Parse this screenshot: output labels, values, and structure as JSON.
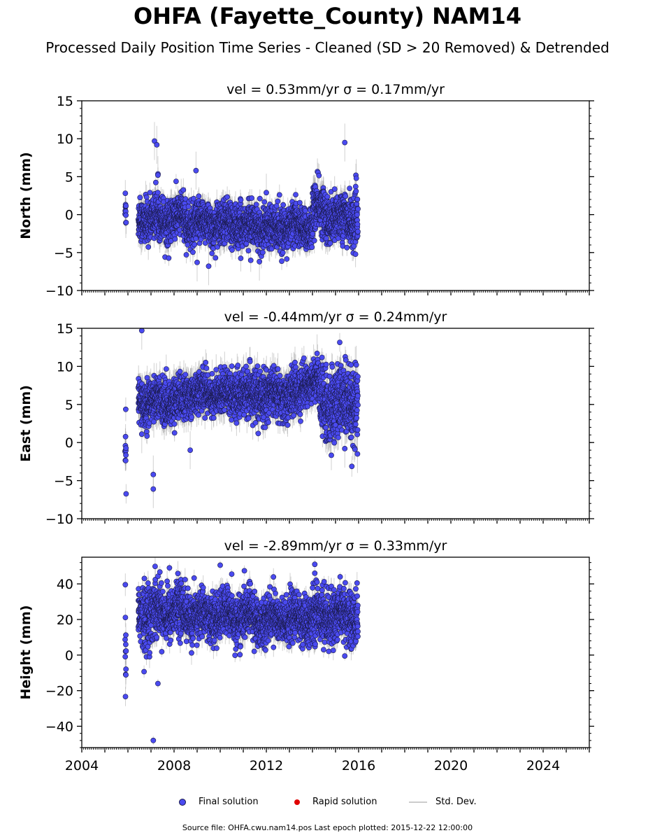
{
  "title": "OHFA (Fayette_County) NAM14",
  "subtitle": "Processed Daily Position Time Series - Cleaned (SD > 20 Removed) & Detrended",
  "legend": {
    "final": "Final solution",
    "rapid": "Rapid solution",
    "std": "Std. Dev."
  },
  "footer": "Source file: OHFA.cwu.nam14.pos  Last epoch plotted: 2015-12-22 12:00:00",
  "colors": {
    "final": "#4a4af0",
    "final_edge": "#1a1a4a",
    "rapid": "#e00000",
    "std": "#bbbbbb"
  },
  "chart_data": [
    {
      "type": "scatter",
      "panel": "north",
      "title": "vel = 0.53mm/yr   σ = 0.17mm/yr",
      "ylabel": "North (mm)",
      "xlim": [
        2004.0,
        2026.0
      ],
      "ylim": [
        -10,
        15
      ],
      "yticks": [
        -10,
        -5,
        0,
        5,
        10,
        15
      ],
      "xticks": [
        "2004",
        "2008",
        "2012",
        "2016",
        "2020",
        "2024"
      ],
      "series": {
        "segments": [
          {
            "start": 2005.88,
            "end": 2005.92,
            "mean": 1.0,
            "sd": 1.6,
            "sigma": 1.5
          },
          {
            "start": 2006.45,
            "end": 2008.5,
            "mean": -0.5,
            "sd": 1.4,
            "sigma": 1.3
          },
          {
            "start": 2008.5,
            "end": 2011.0,
            "mean": -1.2,
            "sd": 1.4,
            "sigma": 1.3
          },
          {
            "start": 2011.0,
            "end": 2014.0,
            "mean": -1.6,
            "sd": 1.3,
            "sigma": 1.2
          },
          {
            "start": 2014.0,
            "end": 2014.6,
            "mean": 0.5,
            "sd": 1.6,
            "sigma": 1.4
          },
          {
            "start": 2014.6,
            "end": 2015.97,
            "mean": -0.5,
            "sd": 1.6,
            "sigma": 1.3
          }
        ],
        "outliers": [
          [
            2007.15,
            9.7
          ],
          [
            2007.25,
            9.2
          ],
          [
            2007.3,
            5.2
          ],
          [
            2008.95,
            5.8
          ],
          [
            2015.4,
            9.5
          ],
          [
            2009.0,
            -6.3
          ],
          [
            2009.5,
            -6.8
          ],
          [
            2011.7,
            -6.2
          ],
          [
            2015.9,
            4.8
          ],
          [
            2012.0,
            2.9
          ]
        ]
      }
    },
    {
      "type": "scatter",
      "panel": "east",
      "title": "vel = -0.44mm/yr   σ = 0.24mm/yr",
      "ylabel": "East (mm)",
      "xlim": [
        2004.0,
        2026.0
      ],
      "ylim": [
        -10,
        15
      ],
      "yticks": [
        -10,
        -5,
        0,
        5,
        10,
        15
      ],
      "xticks": [
        "2004",
        "2008",
        "2012",
        "2016",
        "2020",
        "2024"
      ],
      "series": {
        "segments": [
          {
            "start": 2005.88,
            "end": 2005.92,
            "mean": -1.0,
            "sd": 2.0,
            "sigma": 2.0
          },
          {
            "start": 2006.45,
            "end": 2008.5,
            "mean": 5.5,
            "sd": 1.4,
            "sigma": 1.5
          },
          {
            "start": 2008.5,
            "end": 2011.0,
            "mean": 6.5,
            "sd": 1.3,
            "sigma": 1.5
          },
          {
            "start": 2011.0,
            "end": 2013.5,
            "mean": 6.2,
            "sd": 1.5,
            "sigma": 1.5
          },
          {
            "start": 2013.5,
            "end": 2014.3,
            "mean": 8.0,
            "sd": 1.3,
            "sigma": 1.5
          },
          {
            "start": 2014.3,
            "end": 2015.97,
            "mean": 5.0,
            "sd": 2.4,
            "sigma": 1.6
          }
        ],
        "outliers": [
          [
            2006.6,
            14.7
          ],
          [
            2006.6,
            1.1
          ],
          [
            2007.1,
            -4.2
          ],
          [
            2007.1,
            -6.1
          ],
          [
            2008.7,
            -1.0
          ],
          [
            2014.2,
            11.7
          ],
          [
            2015.95,
            -1.5
          ],
          [
            2015.9,
            10.2
          ],
          [
            2015.4,
            -0.8
          ]
        ]
      }
    },
    {
      "type": "scatter",
      "panel": "height",
      "title": "vel = -2.89mm/yr   σ = 0.33mm/yr",
      "ylabel": "Height (mm)",
      "xlim": [
        2004.0,
        2026.0
      ],
      "ylim": [
        -52,
        55
      ],
      "yticks": [
        -40,
        -20,
        0,
        20,
        40
      ],
      "xticks": [
        "2004",
        "2008",
        "2012",
        "2016",
        "2020",
        "2024"
      ],
      "series": {
        "segments": [
          {
            "start": 2005.88,
            "end": 2005.92,
            "mean": 5.0,
            "sd": 12.0,
            "sigma": 6.0
          },
          {
            "start": 2006.45,
            "end": 2007.2,
            "mean": 24.0,
            "sd": 9.0,
            "sigma": 5.0
          },
          {
            "start": 2007.2,
            "end": 2008.5,
            "mean": 25.0,
            "sd": 7.0,
            "sigma": 5.0
          },
          {
            "start": 2008.5,
            "end": 2011.5,
            "mean": 22.0,
            "sd": 6.5,
            "sigma": 5.0
          },
          {
            "start": 2011.5,
            "end": 2014.0,
            "mean": 20.0,
            "sd": 6.5,
            "sigma": 5.0
          },
          {
            "start": 2014.0,
            "end": 2015.97,
            "mean": 22.0,
            "sd": 7.0,
            "sigma": 5.0
          }
        ],
        "outliers": [
          [
            2007.1,
            -48.0
          ],
          [
            2007.3,
            -16.0
          ],
          [
            2007.8,
            49.0
          ],
          [
            2010.0,
            50.5
          ],
          [
            2010.5,
            45.5
          ],
          [
            2014.1,
            51.0
          ],
          [
            2014.1,
            46.0
          ],
          [
            2014.2,
            41.0
          ],
          [
            2015.4,
            -0.5
          ],
          [
            2015.2,
            44.0
          ]
        ]
      }
    }
  ]
}
